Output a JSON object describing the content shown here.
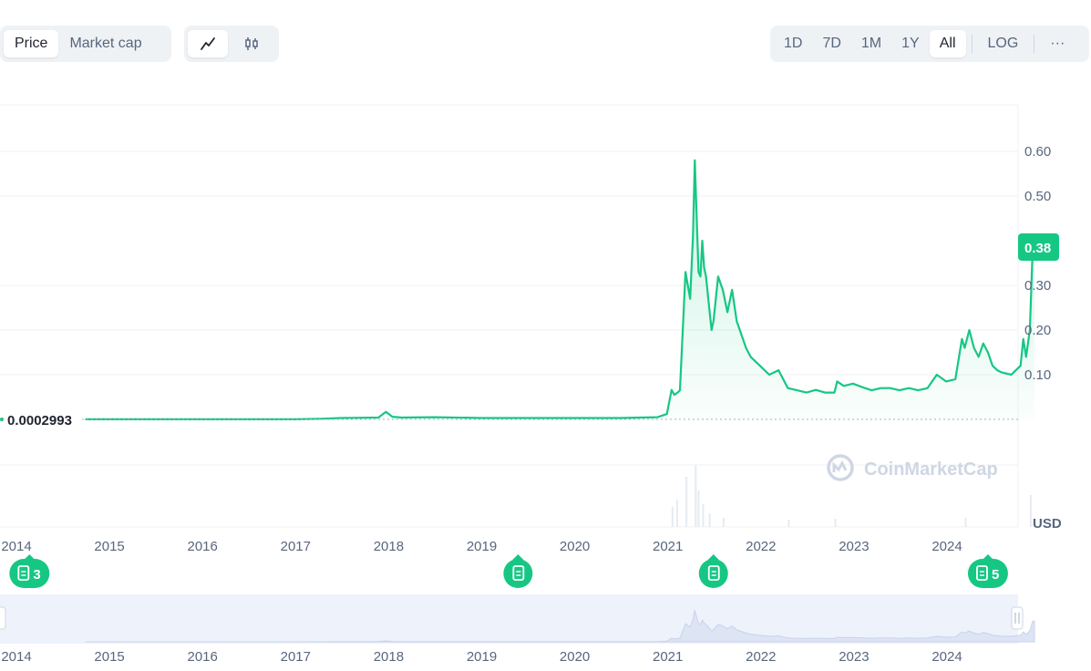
{
  "toolbar": {
    "type_tabs": [
      "Price",
      "Market cap"
    ],
    "active_type": "Price",
    "style_icons": [
      "line-chart-icon",
      "candlestick-icon"
    ],
    "ranges": [
      "1D",
      "7D",
      "1M",
      "1Y",
      "All",
      "LOG"
    ],
    "active_range": "All",
    "more_label": "···"
  },
  "chart_data": {
    "type": "area",
    "currency_label": "USD",
    "watermark": "CoinMarketCap",
    "current_price_label": "0.38",
    "start_price_label": "0.0002993",
    "y_ticks": [
      0.1,
      0.2,
      0.3,
      0.5,
      0.6
    ],
    "y_tick_labels": [
      "0.10",
      "0.20",
      "0.30",
      "0.50",
      "0.60"
    ],
    "ylim": [
      0,
      0.7
    ],
    "x_tick_labels": [
      "2014",
      "2015",
      "2016",
      "2017",
      "2018",
      "2019",
      "2020",
      "2021",
      "2022",
      "2023",
      "2024"
    ],
    "xlim": [
      2014.0,
      2024.95
    ],
    "series": [
      {
        "values_x": [
          2014.75,
          2016.0,
          2017.0,
          2017.3,
          2017.5,
          2017.9,
          2017.98,
          2018.05,
          2018.15,
          2018.5,
          2019.0,
          2019.5,
          2020.0,
          2020.5,
          2020.9,
          2021.0,
          2021.05,
          2021.08,
          2021.12,
          2021.14,
          2021.2,
          2021.25,
          2021.28,
          2021.3,
          2021.32,
          2021.34,
          2021.36,
          2021.38,
          2021.4,
          2021.42,
          2021.45,
          2021.48,
          2021.5,
          2021.55,
          2021.6,
          2021.65,
          2021.7,
          2021.75,
          2021.8,
          2021.85,
          2021.9,
          2021.95,
          2022.0,
          2022.1,
          2022.2,
          2022.3,
          2022.4,
          2022.5,
          2022.6,
          2022.7,
          2022.8,
          2022.83,
          2022.9,
          2023.0,
          2023.1,
          2023.2,
          2023.3,
          2023.4,
          2023.5,
          2023.6,
          2023.7,
          2023.8,
          2023.9,
          2024.0,
          2024.1,
          2024.17,
          2024.2,
          2024.25,
          2024.3,
          2024.35,
          2024.4,
          2024.45,
          2024.5,
          2024.55,
          2024.6,
          2024.7,
          2024.75,
          2024.8,
          2024.83,
          2024.86,
          2024.9,
          2024.93,
          2024.95
        ],
        "values_y": [
          0.0003,
          0.0003,
          0.0003,
          0.0015,
          0.003,
          0.004,
          0.017,
          0.006,
          0.004,
          0.005,
          0.003,
          0.003,
          0.003,
          0.003,
          0.005,
          0.012,
          0.066,
          0.055,
          0.061,
          0.065,
          0.33,
          0.27,
          0.41,
          0.58,
          0.45,
          0.33,
          0.32,
          0.4,
          0.34,
          0.32,
          0.26,
          0.2,
          0.22,
          0.32,
          0.29,
          0.24,
          0.29,
          0.22,
          0.19,
          0.16,
          0.14,
          0.13,
          0.12,
          0.1,
          0.11,
          0.07,
          0.065,
          0.06,
          0.066,
          0.06,
          0.06,
          0.085,
          0.075,
          0.08,
          0.072,
          0.065,
          0.07,
          0.07,
          0.065,
          0.07,
          0.065,
          0.07,
          0.1,
          0.085,
          0.09,
          0.18,
          0.16,
          0.2,
          0.16,
          0.14,
          0.17,
          0.15,
          0.12,
          0.11,
          0.105,
          0.1,
          0.11,
          0.12,
          0.18,
          0.14,
          0.2,
          0.38,
          0.38
        ]
      }
    ],
    "events": [
      {
        "x": 2014.15,
        "label": "3"
      },
      {
        "x": 2019.4,
        "label": ""
      },
      {
        "x": 2021.5,
        "label": ""
      },
      {
        "x": 2024.45,
        "label": "5"
      }
    ],
    "colors": {
      "line": "#16c784",
      "fill": "#16c784",
      "grid": "#eff2f5",
      "navigator_bg": "#eef2fb",
      "navigator_line": "#c8d3ec"
    }
  }
}
